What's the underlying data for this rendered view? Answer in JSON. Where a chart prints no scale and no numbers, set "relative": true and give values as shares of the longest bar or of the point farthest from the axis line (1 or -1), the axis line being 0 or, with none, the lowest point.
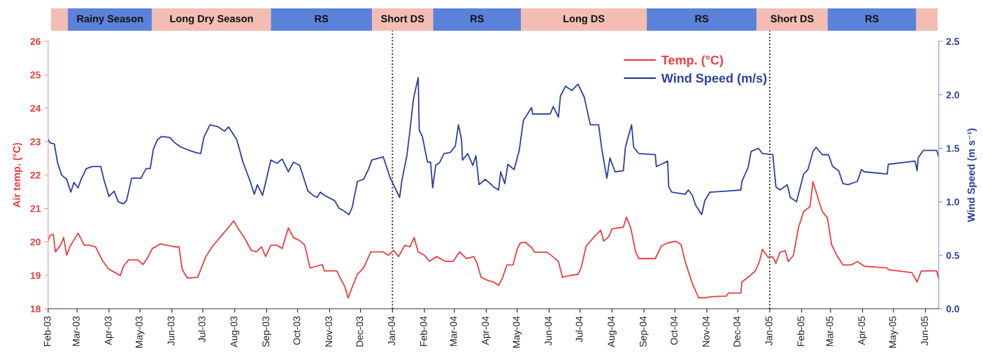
{
  "chart_data": [
    {
      "type": "bar",
      "orientation": "horizontal",
      "stacked": true,
      "relative": true,
      "categories": [
        null
      ],
      "series": [
        {
          "color": "#f3bdb4",
          "values": [
            0.019
          ]
        },
        {
          "name": "Rainy Season",
          "color": "#5b82d9",
          "values": [
            0.095
          ]
        },
        {
          "name": "Long Dry Season",
          "color": "#f3bdb4",
          "values": [
            0.134
          ]
        },
        {
          "name": "RS",
          "color": "#5b82d9",
          "values": [
            0.114
          ]
        },
        {
          "name": "Short DS",
          "color": "#f3bdb4",
          "values": [
            0.069
          ]
        },
        {
          "name": "RS",
          "color": "#5b82d9",
          "values": [
            0.099
          ]
        },
        {
          "name": "Long DS",
          "color": "#f3bdb4",
          "values": [
            0.142
          ]
        },
        {
          "name": "RS",
          "color": "#5b82d9",
          "values": [
            0.124
          ]
        },
        {
          "name": "Short DS",
          "color": "#f3bdb4",
          "values": [
            0.08
          ]
        },
        {
          "name": "RS",
          "color": "#5b82d9",
          "values": [
            0.1
          ]
        },
        {
          "color": "#f3bdb4",
          "values": [
            0.024
          ]
        }
      ]
    },
    {
      "type": "line",
      "ylabel": "Air temp. (°C)",
      "y2label": "Wind Speed (m s⁻¹)",
      "xlim": [
        "2003-02-01",
        "2005-06-14"
      ],
      "xticks": [
        {
          "value": "2003-02-01",
          "label": "Feb-03"
        },
        {
          "value": "2003-03-01",
          "label": "Mar-03"
        },
        {
          "value": "2003-04-01",
          "label": "Apr-03"
        },
        {
          "value": "2003-05-01",
          "label": "May-03"
        },
        {
          "value": "2003-06-01",
          "label": "Jun-03"
        },
        {
          "value": "2003-07-01",
          "label": "Jul-03"
        },
        {
          "value": "2003-08-01",
          "label": "Aug-03"
        },
        {
          "value": "2003-09-01",
          "label": "Sep-03"
        },
        {
          "value": "2003-10-01",
          "label": "Oct-03"
        },
        {
          "value": "2003-11-01",
          "label": "Nov-03"
        },
        {
          "value": "2003-12-01",
          "label": "Dec-03"
        },
        {
          "value": "2004-01-01",
          "label": "Jan-04"
        },
        {
          "value": "2004-02-01",
          "label": "Feb-04"
        },
        {
          "value": "2004-03-01",
          "label": "Mar-04"
        },
        {
          "value": "2004-04-01",
          "label": "Apr-04"
        },
        {
          "value": "2004-05-01",
          "label": "May-04"
        },
        {
          "value": "2004-06-01",
          "label": "Jun-04"
        },
        {
          "value": "2004-07-01",
          "label": "Jul-04"
        },
        {
          "value": "2004-08-01",
          "label": "Aug-04"
        },
        {
          "value": "2004-09-01",
          "label": "Sep-04"
        },
        {
          "value": "2004-10-01",
          "label": "Oct-04"
        },
        {
          "value": "2004-11-01",
          "label": "Nov-04"
        },
        {
          "value": "2004-12-01",
          "label": "Dec-04"
        },
        {
          "value": "2005-01-01",
          "label": "Jan-05"
        },
        {
          "value": "2005-02-01",
          "label": "Feb-05"
        },
        {
          "value": "2005-03-01",
          "label": "Mar-05"
        },
        {
          "value": "2005-04-01",
          "label": "Apr-05"
        },
        {
          "value": "2005-05-01",
          "label": "May-05"
        },
        {
          "value": "2005-06-01",
          "label": "Jun-05"
        }
      ],
      "ylim": [
        18,
        26
      ],
      "yticks": [
        18,
        19,
        20,
        21,
        22,
        23,
        24,
        25,
        26
      ],
      "y2lim": [
        0,
        2.5
      ],
      "y2ticks": [
        {
          "value": 0,
          "label": "0.0"
        },
        0.5,
        {
          "value": 1,
          "label": "1.0"
        },
        1.5,
        {
          "value": 2,
          "label": "2.0"
        },
        2.5
      ],
      "grid": false,
      "legend": "top right",
      "series": [
        {
          "name": "Temp. (°C)",
          "color": "#ea3f3f",
          "x": [
            "2003-02-01",
            "2003-02-03",
            "2003-02-06",
            "2003-02-08",
            "2003-02-13",
            "2003-02-16",
            "2003-02-19",
            "2003-02-22",
            "2003-03-02",
            "2003-03-08",
            "2003-03-13",
            "2003-03-19",
            "2003-03-26",
            "2003-04-01",
            "2003-04-07",
            "2003-04-12",
            "2003-04-15",
            "2003-04-20",
            "2003-04-29",
            "2003-05-04",
            "2003-05-08",
            "2003-05-13",
            "2003-05-21",
            "2003-05-27",
            "2003-06-04",
            "2003-06-08",
            "2003-06-11",
            "2003-06-16",
            "2003-06-26",
            "2003-07-04",
            "2003-07-10",
            "2003-07-19",
            "2003-07-27",
            "2003-07-31",
            "2003-08-05",
            "2003-08-11",
            "2003-08-17",
            "2003-08-22",
            "2003-08-27",
            "2003-08-31",
            "2003-09-05",
            "2003-09-11",
            "2003-09-16",
            "2003-09-22",
            "2003-09-27",
            "2003-10-03",
            "2003-10-08",
            "2003-10-13",
            "2003-10-19",
            "2003-10-25",
            "2003-10-27",
            "2003-11-08",
            "2003-11-11",
            "2003-11-16",
            "2003-11-19",
            "2003-11-23",
            "2003-11-28",
            "2003-12-04",
            "2003-12-11",
            "2003-12-23",
            "2003-12-28",
            "2004-01-02",
            "2004-01-07",
            "2004-01-13",
            "2004-01-18",
            "2004-01-22",
            "2004-01-26",
            "2004-02-01",
            "2004-02-06",
            "2004-02-13",
            "2004-02-21",
            "2004-02-29",
            "2004-03-06",
            "2004-03-13",
            "2004-03-20",
            "2004-03-23",
            "2004-03-27",
            "2004-04-03",
            "2004-04-08",
            "2004-04-13",
            "2004-04-17",
            "2004-04-21",
            "2004-04-27",
            "2004-05-01",
            "2004-05-04",
            "2004-05-09",
            "2004-05-15",
            "2004-05-18",
            "2004-05-30",
            "2004-06-05",
            "2004-06-10",
            "2004-06-14",
            "2004-06-20",
            "2004-06-29",
            "2004-07-02",
            "2004-07-07",
            "2004-07-15",
            "2004-07-21",
            "2004-07-24",
            "2004-07-29",
            "2004-08-01",
            "2004-08-12",
            "2004-08-15",
            "2004-08-19",
            "2004-08-24",
            "2004-08-27",
            "2004-09-12",
            "2004-09-18",
            "2004-09-24",
            "2004-10-02",
            "2004-10-07",
            "2004-10-11",
            "2004-10-18",
            "2004-10-24",
            "2004-10-30",
            "2004-11-05",
            "2004-11-20",
            "2004-11-22",
            "2004-12-04",
            "2004-12-05",
            "2004-12-11",
            "2004-12-18",
            "2004-12-22",
            "2004-12-25",
            "2004-12-30",
            "2005-01-04",
            "2005-01-07",
            "2005-01-11",
            "2005-01-16",
            "2005-01-19",
            "2005-01-24",
            "2005-01-29",
            "2005-02-03",
            "2005-02-09",
            "2005-02-12",
            "2005-02-18",
            "2005-02-21",
            "2005-02-26",
            "2005-03-02",
            "2005-03-07",
            "2005-03-13",
            "2005-03-21",
            "2005-03-27",
            "2005-04-03",
            "2005-04-25",
            "2005-04-26",
            "2005-05-19",
            "2005-05-24",
            "2005-05-28",
            "2005-06-12",
            "2005-06-14"
          ],
          "values": [
            20.04,
            20.2,
            20.23,
            19.7,
            19.9,
            20.13,
            19.6,
            19.85,
            20.26,
            19.9,
            19.9,
            19.85,
            19.42,
            19.18,
            19.08,
            18.99,
            19.27,
            19.46,
            19.46,
            19.32,
            19.5,
            19.8,
            19.94,
            19.9,
            19.85,
            19.85,
            19.18,
            18.92,
            18.94,
            19.56,
            19.85,
            20.18,
            20.47,
            20.63,
            20.37,
            20.09,
            19.75,
            19.7,
            19.85,
            19.56,
            19.9,
            19.9,
            19.8,
            20.42,
            20.13,
            20.04,
            19.9,
            19.22,
            19.27,
            19.32,
            19.13,
            19.13,
            18.94,
            18.65,
            18.32,
            18.65,
            19.03,
            19.22,
            19.7,
            19.7,
            19.6,
            19.75,
            19.56,
            19.9,
            19.85,
            20.13,
            19.7,
            19.6,
            19.42,
            19.56,
            19.42,
            19.42,
            19.7,
            19.5,
            19.56,
            19.37,
            18.94,
            18.84,
            18.8,
            18.7,
            18.94,
            19.31,
            19.31,
            19.78,
            19.97,
            19.99,
            19.83,
            19.69,
            19.69,
            19.55,
            19.41,
            18.94,
            18.99,
            19.03,
            19.22,
            19.88,
            20.16,
            20.35,
            20.02,
            20.16,
            20.39,
            20.44,
            20.74,
            20.44,
            19.69,
            19.5,
            19.5,
            19.88,
            19.97,
            20.02,
            19.92,
            19.41,
            18.75,
            18.33,
            18.33,
            18.36,
            18.38,
            18.47,
            18.47,
            18.8,
            18.94,
            19.13,
            19.41,
            19.78,
            19.55,
            19.55,
            19.36,
            19.69,
            19.74,
            19.41,
            19.6,
            20.44,
            20.91,
            21.05,
            21.8,
            21.19,
            20.91,
            20.72,
            19.92,
            19.6,
            19.31,
            19.31,
            19.41,
            19.27,
            19.22,
            19.17,
            19.08,
            18.8,
            19.13,
            19.13,
            18.89
          ]
        },
        {
          "name": "Wind Speed (m/s)",
          "color": "#2b3f9f",
          "axis": "y2",
          "x": [
            "2003-02-01",
            "2003-02-03",
            "2003-02-07",
            "2003-02-10",
            "2003-02-14",
            "2003-02-19",
            "2003-02-23",
            "2003-02-26",
            "2003-03-02",
            "2003-03-05",
            "2003-03-10",
            "2003-03-16",
            "2003-03-24",
            "2003-03-27",
            "2003-04-01",
            "2003-04-06",
            "2003-04-10",
            "2003-04-15",
            "2003-04-18",
            "2003-04-23",
            "2003-05-02",
            "2003-05-07",
            "2003-05-11",
            "2003-05-14",
            "2003-05-18",
            "2003-05-22",
            "2003-05-30",
            "2003-06-04",
            "2003-06-10",
            "2003-06-18",
            "2003-06-24",
            "2003-06-29",
            "2003-07-02",
            "2003-07-08",
            "2003-07-16",
            "2003-07-22",
            "2003-07-26",
            "2003-07-30",
            "2003-08-03",
            "2003-08-09",
            "2003-08-16",
            "2003-08-20",
            "2003-08-23",
            "2003-08-28",
            "2003-08-31",
            "2003-09-05",
            "2003-09-11",
            "2003-09-16",
            "2003-09-22",
            "2003-09-27",
            "2003-10-03",
            "2003-10-06",
            "2003-10-11",
            "2003-10-16",
            "2003-10-20",
            "2003-10-23",
            "2003-10-27",
            "2003-11-06",
            "2003-11-10",
            "2003-11-14",
            "2003-11-20",
            "2003-11-23",
            "2003-11-28",
            "2003-12-04",
            "2003-12-09",
            "2003-12-12",
            "2003-12-23",
            "2003-12-30",
            "2004-01-02",
            "2004-01-08",
            "2004-01-10",
            "2004-01-15",
            "2004-01-18",
            "2004-01-21",
            "2004-01-22",
            "2004-01-26",
            "2004-01-27",
            "2004-01-30",
            "2004-02-04",
            "2004-02-07",
            "2004-02-09",
            "2004-02-12",
            "2004-02-16",
            "2004-02-20",
            "2004-02-26",
            "2004-03-02",
            "2004-03-05",
            "2004-03-08",
            "2004-03-09",
            "2004-03-14",
            "2004-03-19",
            "2004-03-22",
            "2004-03-25",
            "2004-03-31",
            "2004-04-06",
            "2004-04-08",
            "2004-04-13",
            "2004-04-15",
            "2004-04-19",
            "2004-04-22",
            "2004-04-28",
            "2004-05-03",
            "2004-05-07",
            "2004-05-15",
            "2004-05-16",
            "2004-06-02",
            "2004-06-05",
            "2004-06-10",
            "2004-06-12",
            "2004-06-17",
            "2004-06-23",
            "2004-06-29",
            "2004-07-05",
            "2004-07-11",
            "2004-07-19",
            "2004-07-22",
            "2004-07-27",
            "2004-07-30",
            "2004-08-04",
            "2004-08-12",
            "2004-08-14",
            "2004-08-20",
            "2004-08-22",
            "2004-08-27",
            "2004-09-12",
            "2004-09-13",
            "2004-09-18",
            "2004-09-24",
            "2004-09-25",
            "2004-09-28",
            "2004-10-11",
            "2004-10-14",
            "2004-10-18",
            "2004-10-21",
            "2004-10-27",
            "2004-10-30",
            "2004-11-04",
            "2004-11-20",
            "2004-12-04",
            "2004-12-05",
            "2004-12-11",
            "2004-12-14",
            "2004-12-21",
            "2004-12-25",
            "2005-01-04",
            "2005-01-07",
            "2005-01-11",
            "2005-01-18",
            "2005-01-21",
            "2005-01-27",
            "2005-02-03",
            "2005-02-07",
            "2005-02-12",
            "2005-02-15",
            "2005-02-21",
            "2005-02-27",
            "2005-03-03",
            "2005-03-09",
            "2005-03-13",
            "2005-03-18",
            "2005-03-27",
            "2005-03-31",
            "2005-04-03",
            "2005-04-25",
            "2005-04-26",
            "2005-05-22",
            "2005-05-24",
            "2005-05-25",
            "2005-05-30",
            "2005-06-12",
            "2005-06-14"
          ],
          "values": [
            1.58,
            1.55,
            1.54,
            1.37,
            1.25,
            1.21,
            1.09,
            1.18,
            1.13,
            1.21,
            1.31,
            1.33,
            1.33,
            1.21,
            1.05,
            1.1,
            1.0,
            0.98,
            1.01,
            1.22,
            1.22,
            1.31,
            1.31,
            1.49,
            1.58,
            1.61,
            1.6,
            1.55,
            1.51,
            1.48,
            1.46,
            1.45,
            1.6,
            1.72,
            1.7,
            1.66,
            1.7,
            1.64,
            1.58,
            1.37,
            1.19,
            1.07,
            1.16,
            1.06,
            1.18,
            1.39,
            1.36,
            1.4,
            1.28,
            1.37,
            1.34,
            1.25,
            1.1,
            1.06,
            1.04,
            1.09,
            1.06,
            1.01,
            0.94,
            0.92,
            0.88,
            0.95,
            1.19,
            1.21,
            1.31,
            1.39,
            1.42,
            1.22,
            1.16,
            1.04,
            1.19,
            1.43,
            1.67,
            1.93,
            1.99,
            2.16,
            1.67,
            1.61,
            1.37,
            1.37,
            1.13,
            1.34,
            1.37,
            1.45,
            1.46,
            1.52,
            1.72,
            1.58,
            1.39,
            1.45,
            1.34,
            1.43,
            1.16,
            1.21,
            1.16,
            1.14,
            1.11,
            1.28,
            1.17,
            1.35,
            1.3,
            1.48,
            1.76,
            1.88,
            1.82,
            1.82,
            1.89,
            1.79,
            1.99,
            2.08,
            2.04,
            2.1,
            1.98,
            1.72,
            1.72,
            1.5,
            1.22,
            1.41,
            1.28,
            1.29,
            1.51,
            1.72,
            1.51,
            1.45,
            1.44,
            1.33,
            1.35,
            1.38,
            1.14,
            1.09,
            1.07,
            1.11,
            1.06,
            0.97,
            0.88,
            1.01,
            1.09,
            1.1,
            1.11,
            1.19,
            1.32,
            1.47,
            1.5,
            1.45,
            1.44,
            1.14,
            1.11,
            1.16,
            1.04,
            1.0,
            1.26,
            1.3,
            1.47,
            1.51,
            1.44,
            1.44,
            1.33,
            1.29,
            1.17,
            1.16,
            1.19,
            1.3,
            1.28,
            1.26,
            1.35,
            1.38,
            1.29,
            1.41,
            1.48,
            1.48,
            1.42
          ]
        }
      ],
      "ref_lines": [
        {
          "axis": "x",
          "value": "2004-01-01",
          "color": "#111111",
          "line_style": "dotted"
        },
        {
          "axis": "x",
          "value": "2005-01-01",
          "color": "#111111",
          "line_style": "dotted"
        }
      ]
    }
  ]
}
